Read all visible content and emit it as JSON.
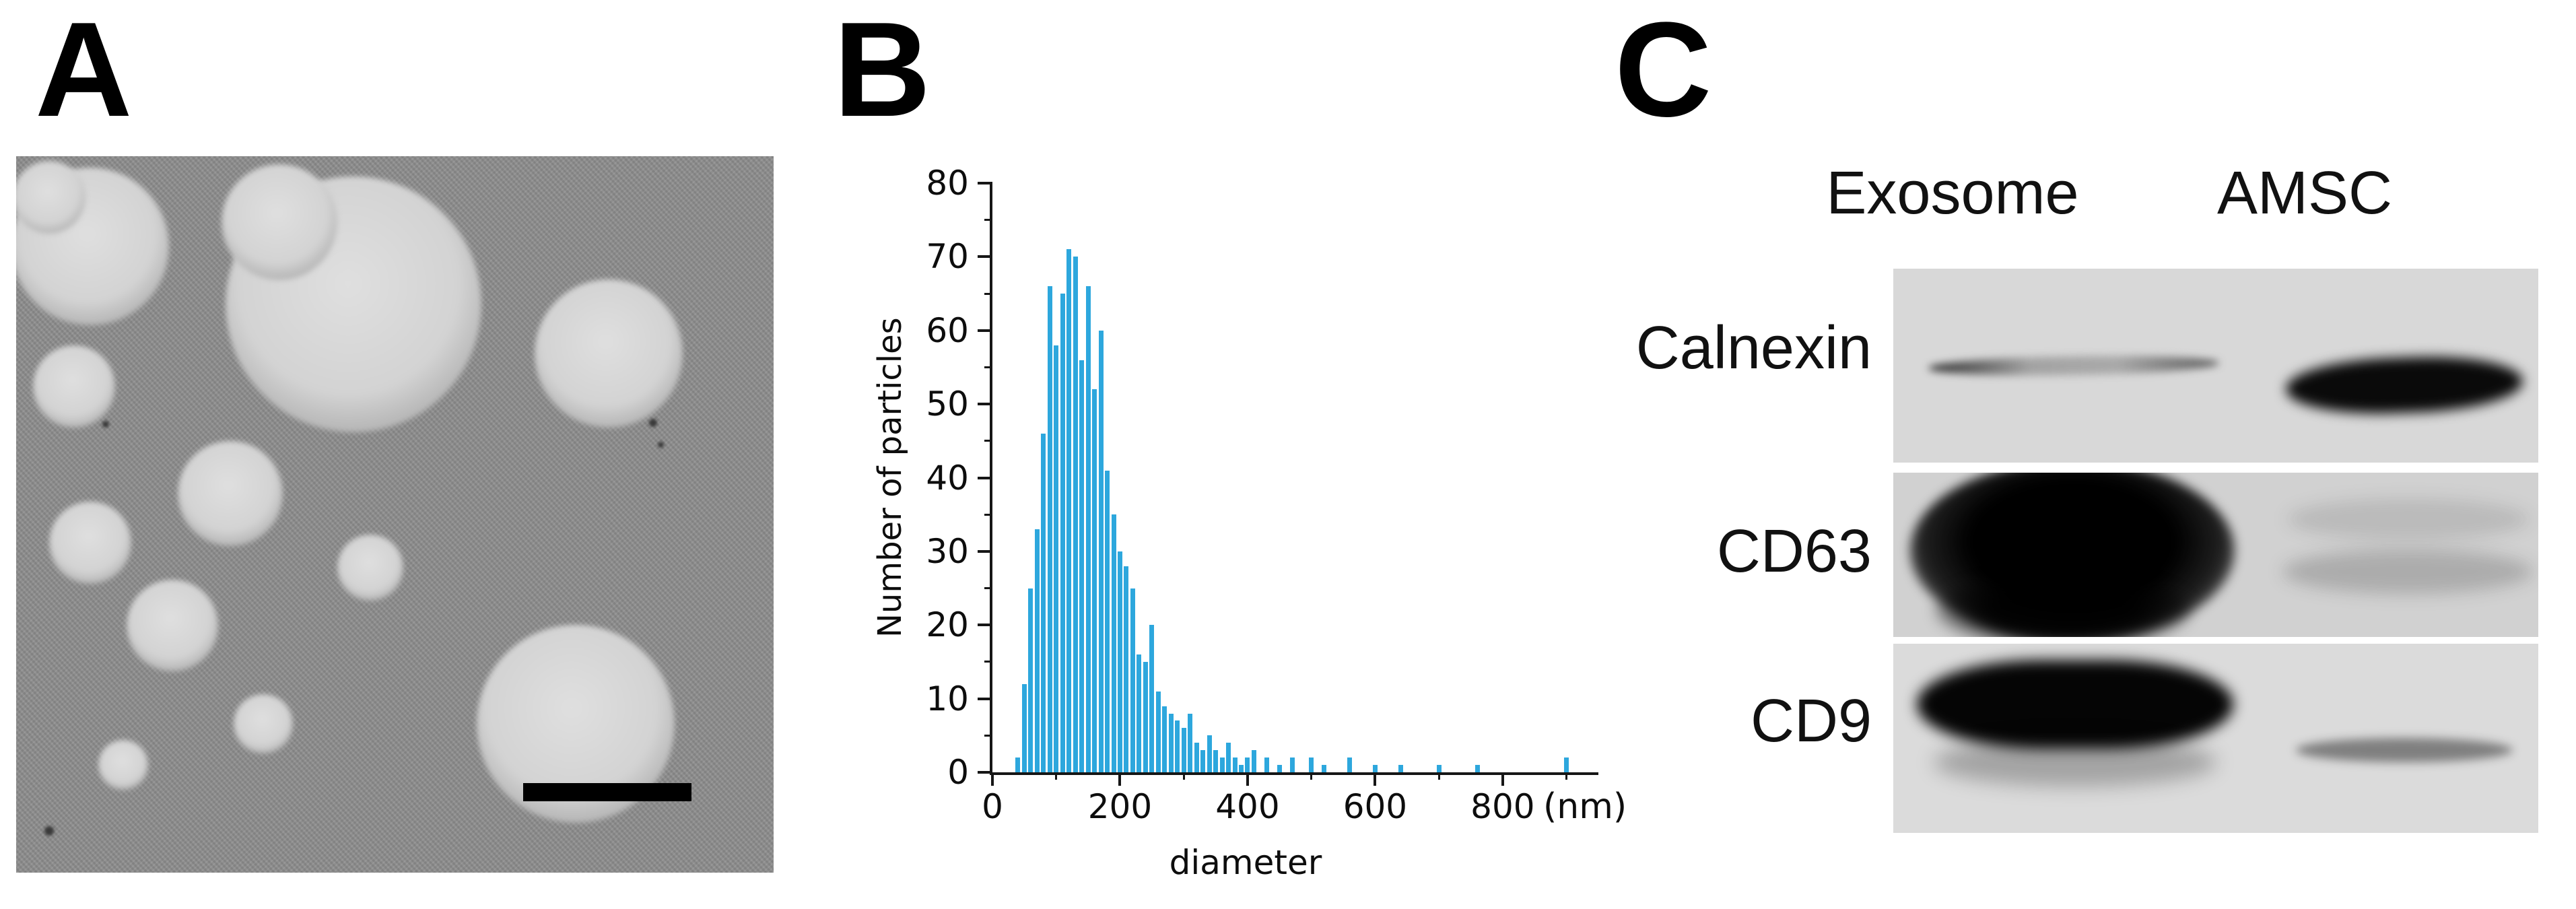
{
  "figure": {
    "background": "#ffffff"
  },
  "panel_a": {
    "label": "A"
  },
  "panel_b": {
    "label": "B"
  },
  "chart_data": {
    "type": "bar",
    "title": "",
    "ylabel": "Number of particles",
    "xlabel": "diameter",
    "xunit": "(nm)",
    "xlim": [
      0,
      950
    ],
    "ylim": [
      0,
      80
    ],
    "xticks": [
      0,
      200,
      400,
      600,
      800
    ],
    "yticks": [
      0,
      10,
      20,
      30,
      40,
      50,
      60,
      70,
      80
    ],
    "grid": false,
    "legend": false,
    "bar_color": "#2da7dd",
    "bin_width_nm": 10,
    "x": [
      40,
      50,
      60,
      70,
      80,
      90,
      100,
      110,
      120,
      130,
      140,
      150,
      160,
      170,
      180,
      190,
      200,
      210,
      220,
      230,
      240,
      250,
      260,
      270,
      280,
      290,
      300,
      310,
      320,
      330,
      340,
      350,
      360,
      370,
      380,
      390,
      400,
      410,
      430,
      450,
      470,
      500,
      520,
      560,
      600,
      640,
      700,
      760,
      900
    ],
    "values": [
      2,
      12,
      25,
      33,
      46,
      66,
      58,
      65,
      71,
      70,
      56,
      66,
      52,
      60,
      41,
      35,
      30,
      28,
      25,
      16,
      15,
      20,
      11,
      9,
      8,
      7,
      6,
      8,
      4,
      3,
      5,
      3,
      2,
      4,
      2,
      1,
      2,
      3,
      2,
      1,
      2,
      2,
      1,
      2,
      1,
      1,
      1,
      1,
      2
    ]
  },
  "panel_c": {
    "label": "C",
    "columns": [
      "Exosome",
      "AMSC"
    ],
    "rows": [
      {
        "label": "Calnexin",
        "exosome_band": "faint",
        "amsc_band": "strong"
      },
      {
        "label": "CD63",
        "exosome_band": "strong",
        "amsc_band": "faint"
      },
      {
        "label": "CD9",
        "exosome_band": "strong",
        "amsc_band": "faint"
      }
    ]
  }
}
